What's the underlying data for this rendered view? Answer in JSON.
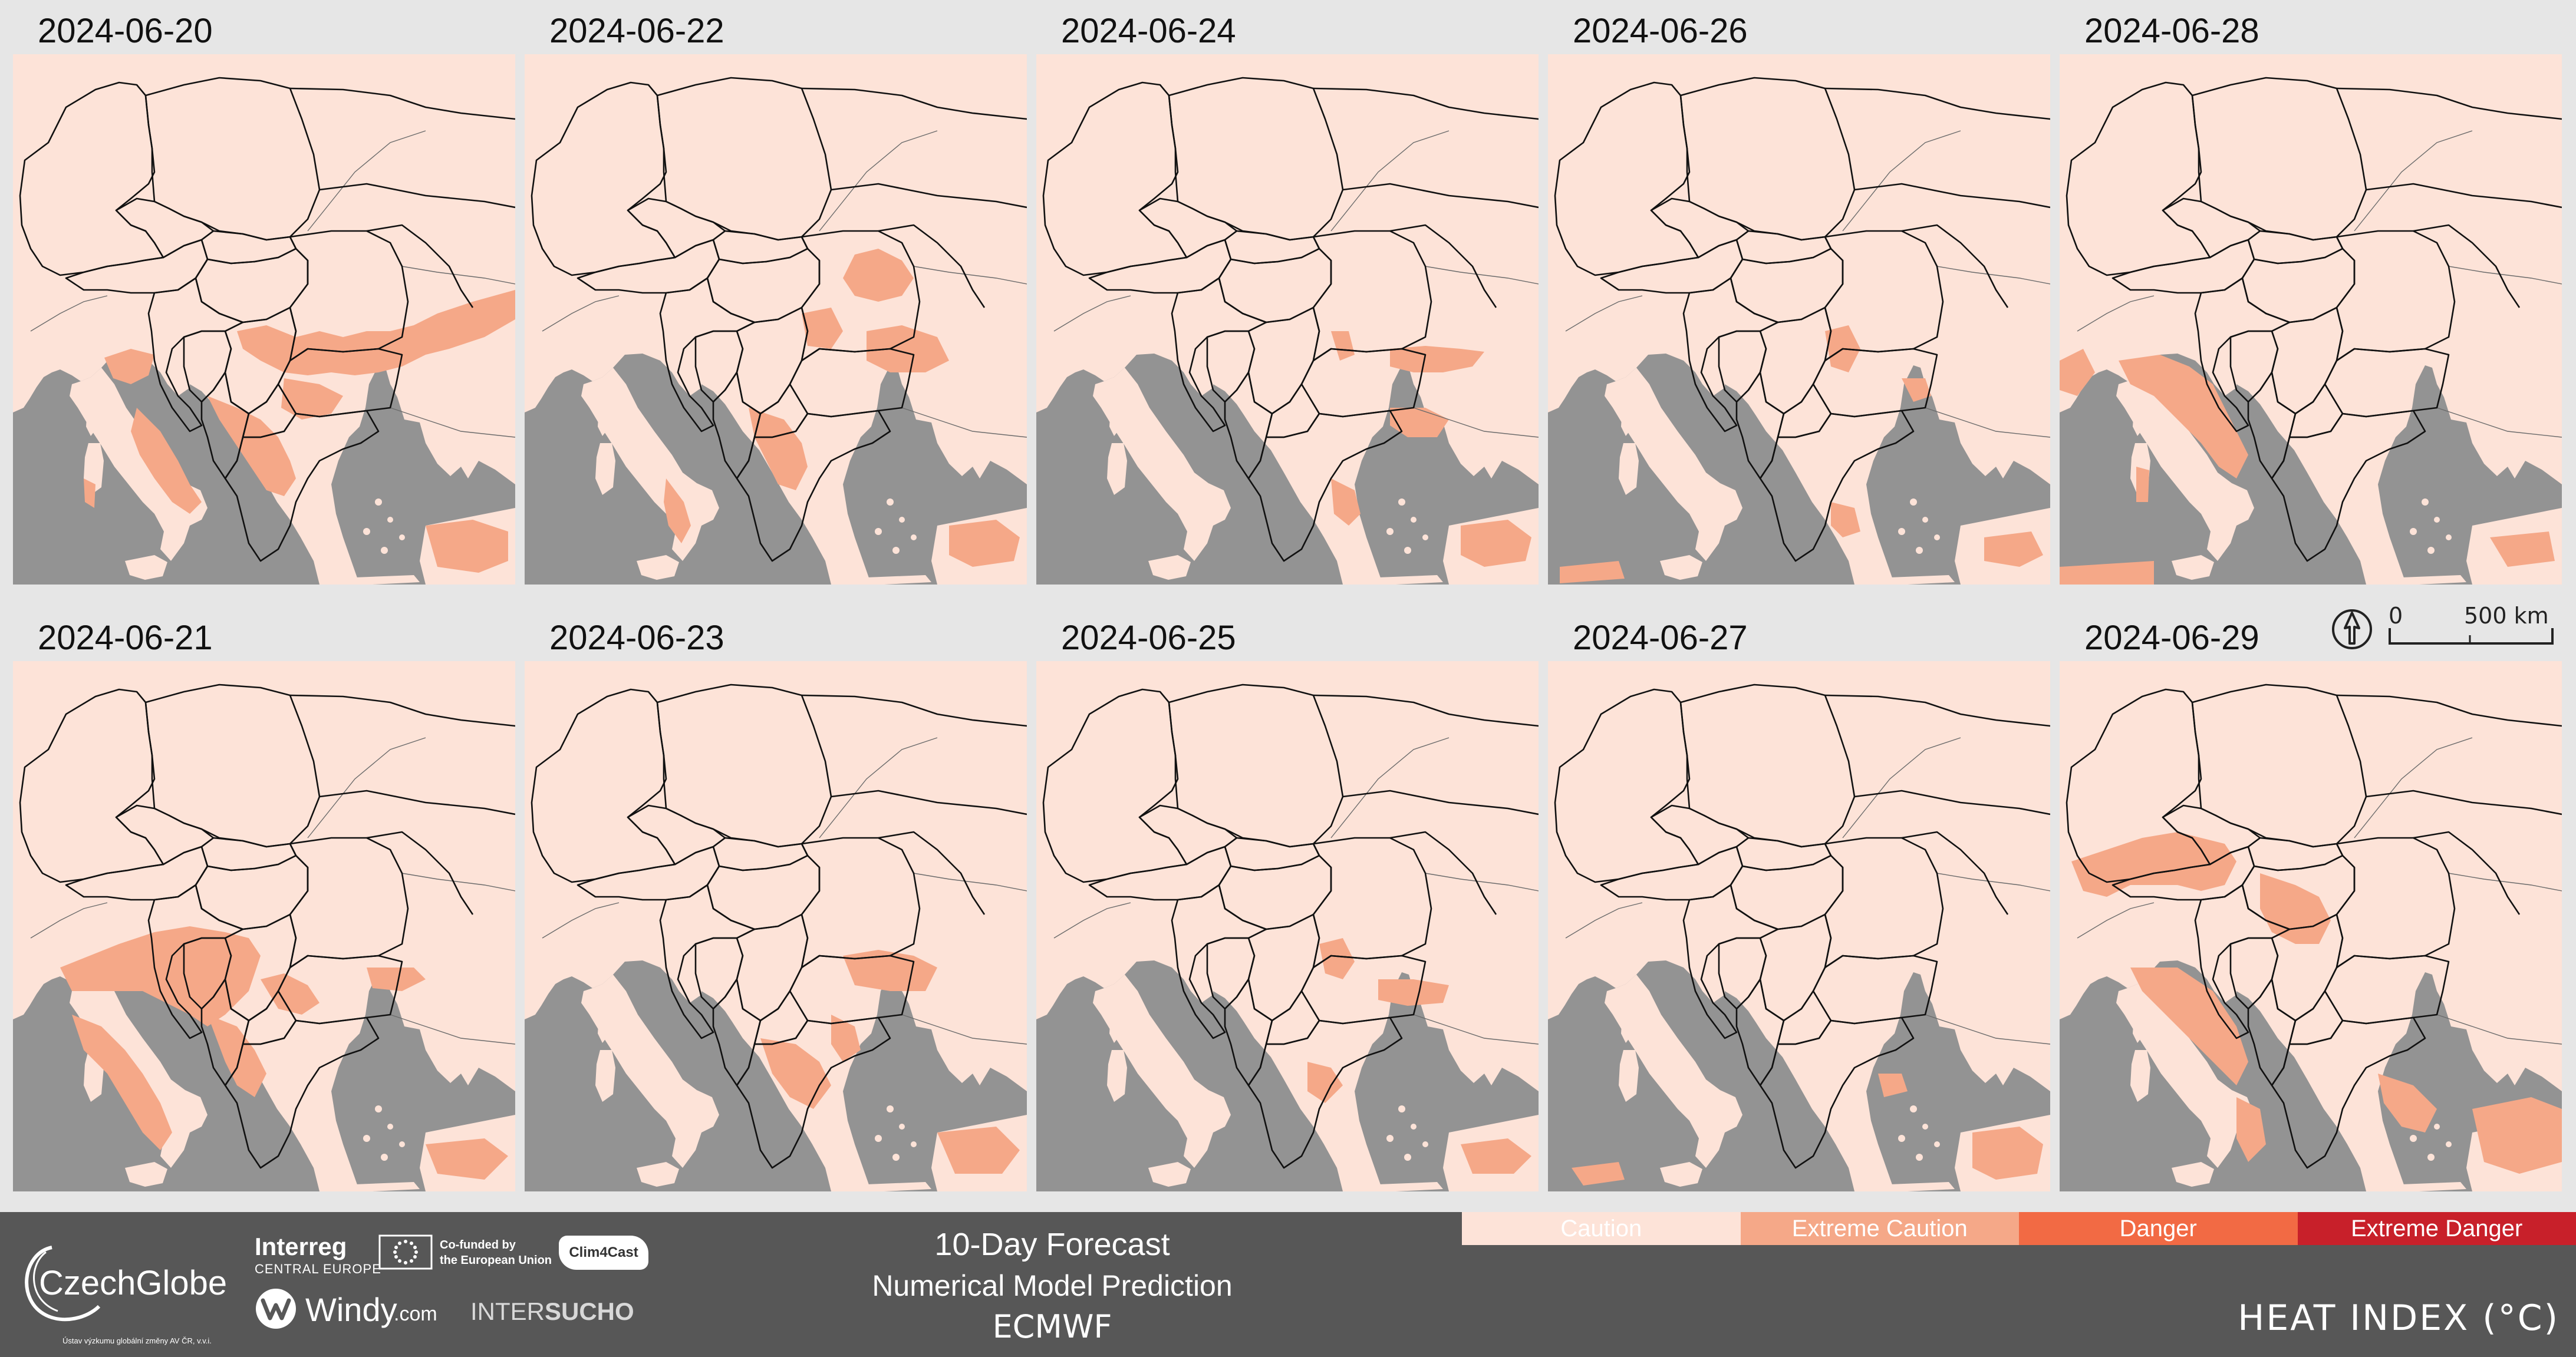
{
  "maps": [
    {
      "date": "2024-06-20",
      "category": "Extreme Caution"
    },
    {
      "date": "2024-06-22",
      "category": "Extreme Caution"
    },
    {
      "date": "2024-06-24",
      "category": "Extreme Caution"
    },
    {
      "date": "2024-06-26",
      "category": "Extreme Caution"
    },
    {
      "date": "2024-06-28",
      "category": "Extreme Caution"
    },
    {
      "date": "2024-06-21",
      "category": "Extreme Caution"
    },
    {
      "date": "2024-06-23",
      "category": "Extreme Caution"
    },
    {
      "date": "2024-06-25",
      "category": "Extreme Caution"
    },
    {
      "date": "2024-06-27",
      "category": "Extreme Caution"
    },
    {
      "date": "2024-06-29",
      "category": "Extreme Caution"
    }
  ],
  "scale": {
    "start": "0",
    "end": "500 km"
  },
  "footer": {
    "czechglobe": "CzechGlobe",
    "czechglobe_sub": "Ústav výzkumu globální změny AV ČR, v.v.i.",
    "interreg": "Interreg",
    "interreg_sub": "CENTRAL EUROPE",
    "cofunded_line1": "Co-funded by",
    "cofunded_line2": "the European Union",
    "clim4cast": "Clim4Cast",
    "windy": "Windy",
    "windy_suffix": ".com",
    "intersucho_a": "INTER",
    "intersucho_b": "SUCHO",
    "forecast_title": "10-Day Forecast",
    "forecast_subtitle": "Numerical Model Prediction",
    "model": "ECMWF",
    "index_title": "HEAT INDEX (°C)"
  },
  "legend": [
    {
      "label": "Caution",
      "color": "#fde3d8"
    },
    {
      "label": "Extreme Caution",
      "color": "#f5a888"
    },
    {
      "label": "Danger",
      "color": "#f26a44"
    },
    {
      "label": "Extreme Danger",
      "color": "#c8202a"
    }
  ],
  "colors": {
    "sea": "#939393",
    "land": "#fde3d8",
    "background": "#e6e6e6",
    "footer": "#575757"
  }
}
